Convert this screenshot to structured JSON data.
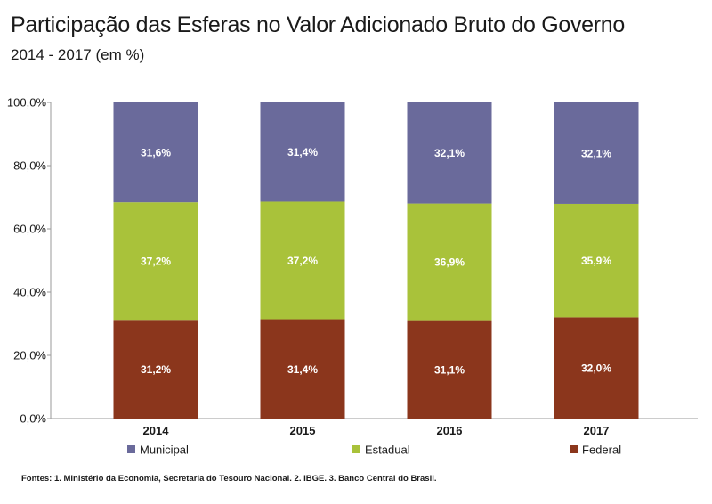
{
  "header": {
    "title": "Participação das Esferas no Valor Adicionado Bruto do Governo",
    "subtitle": "2014 - 2017 (em %)"
  },
  "source": "Fontes: 1. Ministério da Economia, Secretaria do Tesouro Nacional. 2. IBGE. 3. Banco Central do Brasil.",
  "chart_data": {
    "type": "bar",
    "stacked": true,
    "categories": [
      "2014",
      "2015",
      "2016",
      "2017"
    ],
    "y_ticks": [
      "0,0%",
      "20,0%",
      "40,0%",
      "60,0%",
      "80,0%",
      "100,0%"
    ],
    "ylim": [
      0,
      100
    ],
    "grid": false,
    "legend_position": "bottom",
    "series": [
      {
        "name": "Federal",
        "color": "#8b361c",
        "values": [
          31.2,
          31.4,
          31.1,
          32.0
        ],
        "labels": [
          "31,2%",
          "31,4%",
          "31,1%",
          "32,0%"
        ]
      },
      {
        "name": "Estadual",
        "color": "#a9c23a",
        "values": [
          37.2,
          37.2,
          36.9,
          35.9
        ],
        "labels": [
          "37,2%",
          "37,2%",
          "36,9%",
          "35,9%"
        ]
      },
      {
        "name": "Municipal",
        "color": "#6a6a9b",
        "values": [
          31.6,
          31.4,
          32.1,
          32.1
        ],
        "labels": [
          "31,6%",
          "31,4%",
          "32,1%",
          "32,1%"
        ]
      }
    ],
    "legend_order": [
      "Municipal",
      "Estadual",
      "Federal"
    ]
  }
}
